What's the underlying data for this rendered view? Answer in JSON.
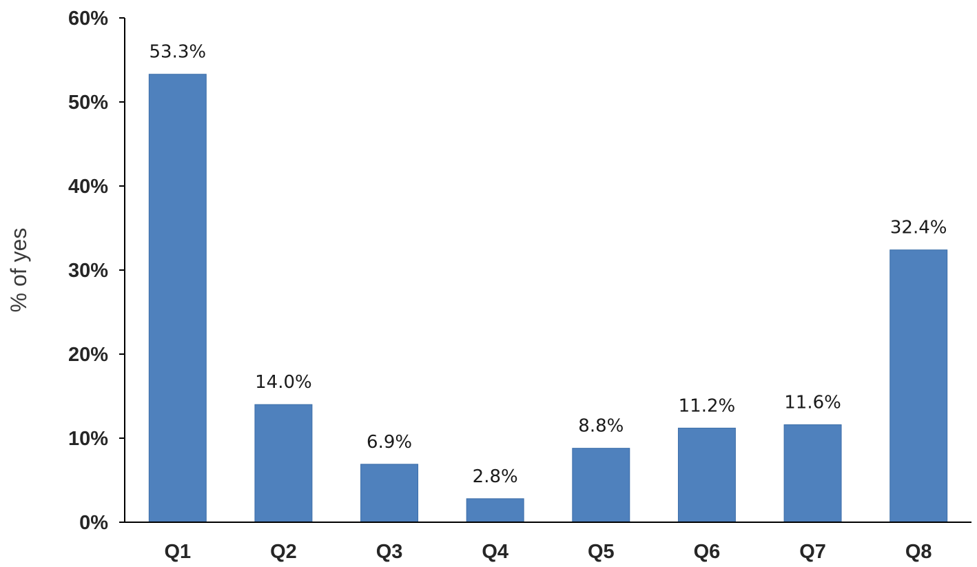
{
  "chart_data": {
    "type": "bar",
    "title": "",
    "xlabel": "",
    "ylabel": "% of yes",
    "categories": [
      "Q1",
      "Q2",
      "Q3",
      "Q4",
      "Q5",
      "Q6",
      "Q7",
      "Q8"
    ],
    "values": [
      53.3,
      14.0,
      6.9,
      2.8,
      8.8,
      11.2,
      11.6,
      32.4
    ],
    "data_labels": [
      "53.3%",
      "14.0%",
      "6.9%",
      "2.8%",
      "8.8%",
      "11.2%",
      "11.6%",
      "32.4%"
    ],
    "ylim": [
      0,
      60
    ],
    "yticks": [
      0,
      10,
      20,
      30,
      40,
      50,
      60
    ],
    "ytick_labels": [
      "0%",
      "10%",
      "20%",
      "30%",
      "40%",
      "50%",
      "60%"
    ],
    "grid": false,
    "legend": "none",
    "bar_color": "#4F81BD",
    "bar_border_color": "#3C6EA8"
  }
}
